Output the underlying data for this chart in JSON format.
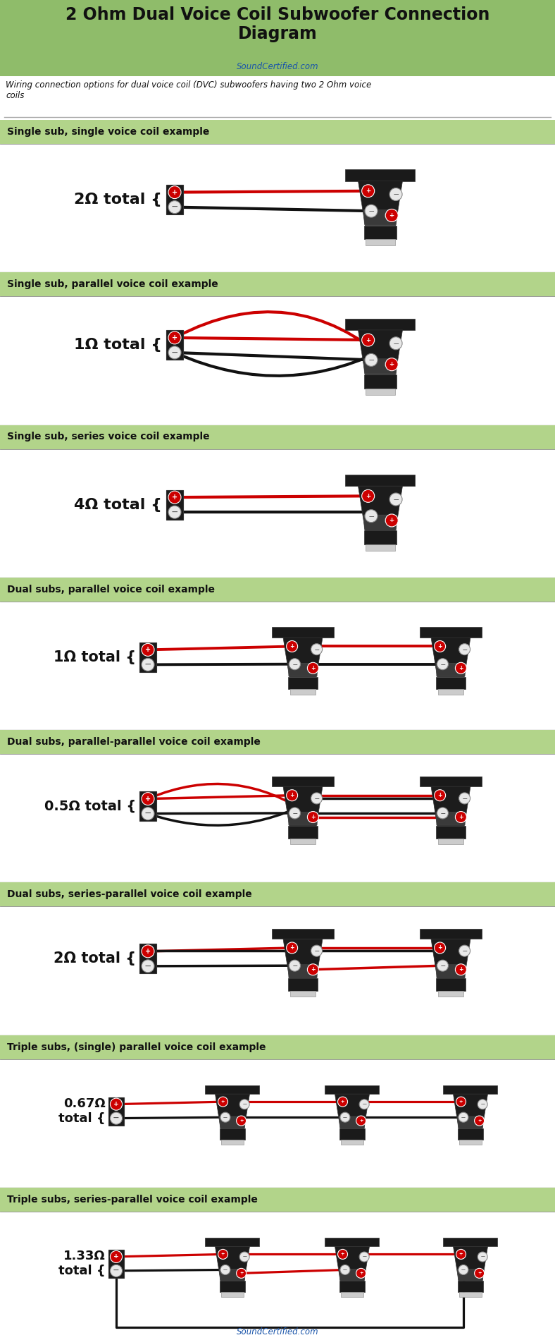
{
  "title": "2 Ohm Dual Voice Coil Subwoofer Connection\nDiagram",
  "subtitle": "SoundCertified.com",
  "description": "Wiring connection options for dual voice coil (DVC) subwoofers having two 2 Ohm voice\ncoils",
  "bg_color": "#ffffff",
  "header_bg": "#8fbc6a",
  "section_label_bg": "#b2d48a",
  "sections": [
    {
      "label": "Single sub, single voice coil example",
      "impedance": "2Ω total {",
      "num_subs": 1,
      "wiring": "single_series"
    },
    {
      "label": "Single sub, parallel voice coil example",
      "impedance": "1Ω total {",
      "num_subs": 1,
      "wiring": "single_parallel"
    },
    {
      "label": "Single sub, series voice coil example",
      "impedance": "4Ω total {",
      "num_subs": 1,
      "wiring": "single_series2"
    },
    {
      "label": "Dual subs, parallel voice coil example",
      "impedance": "1Ω total {",
      "num_subs": 2,
      "wiring": "dual_parallel"
    },
    {
      "label": "Dual subs, parallel-parallel voice coil example",
      "impedance": "0.5Ω total {",
      "num_subs": 2,
      "wiring": "dual_pp"
    },
    {
      "label": "Dual subs, series-parallel voice coil example",
      "impedance": "2Ω total {",
      "num_subs": 2,
      "wiring": "dual_sp"
    },
    {
      "label": "Triple subs, (single) parallel voice coil example",
      "impedance": "0.67Ω\ntotal {",
      "num_subs": 3,
      "wiring": "triple_parallel"
    },
    {
      "label": "Triple subs, series-parallel voice coil example",
      "impedance": "1.33Ω\ntotal {",
      "num_subs": 3,
      "wiring": "triple_sp"
    }
  ],
  "red": "#cc0000",
  "black": "#111111",
  "footer": "SoundCertified.com"
}
